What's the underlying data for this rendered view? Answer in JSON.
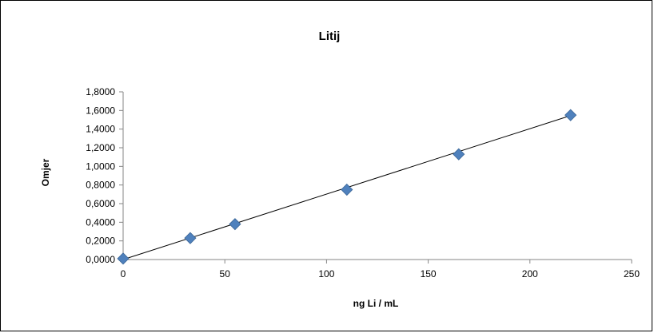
{
  "chart_data": {
    "type": "scatter",
    "title": "Litij",
    "xlabel": "ng  Li / mL",
    "ylabel": "Omjer",
    "xlim": [
      0,
      250
    ],
    "ylim": [
      0,
      1.8
    ],
    "x_ticks": [
      "0",
      "50",
      "100",
      "150",
      "200",
      "250"
    ],
    "y_ticks": [
      "0,0000",
      "0,2000",
      "0,4000",
      "0,6000",
      "0,8000",
      "1,0000",
      "1,2000",
      "1,4000",
      "1,6000",
      "1,8000"
    ],
    "grid": false,
    "legend": "none",
    "series": [
      {
        "x": [
          0,
          33,
          55,
          110,
          165,
          220
        ],
        "y": [
          0.01,
          0.23,
          0.38,
          0.75,
          1.13,
          1.55
        ],
        "marker": "diamond",
        "color": "#4F81BD"
      }
    ],
    "trendline": {
      "type": "linear",
      "x": [
        0,
        220
      ],
      "y": [
        0.0,
        1.545
      ],
      "color": "#000000"
    }
  }
}
